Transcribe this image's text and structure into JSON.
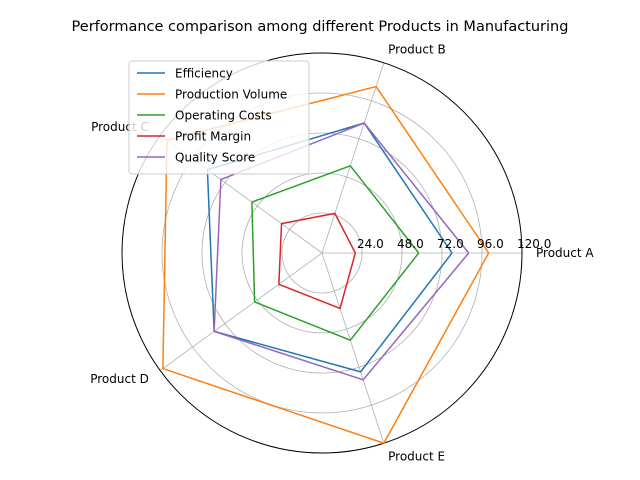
{
  "chart_data": {
    "type": "radar",
    "title": "Performance comparison among different Products in Manufacturing",
    "categories": [
      "Product A",
      "Product B",
      "Product C",
      "Product D",
      "Product E"
    ],
    "rlim": [
      0,
      120
    ],
    "radial_ticks": [
      24,
      48,
      72,
      96,
      120
    ],
    "radial_tick_labels": [
      "24.0",
      "48.0",
      "72.0",
      "96.0",
      "120.0"
    ],
    "grid": true,
    "legend_position": "upper-left",
    "series": [
      {
        "name": "Efficiency",
        "color": "#1f77b4",
        "values": [
          78,
          82,
          85,
          80,
          75
        ]
      },
      {
        "name": "Production Volume",
        "color": "#ff7f0e",
        "values": [
          100,
          105,
          115,
          118,
          120
        ]
      },
      {
        "name": "Operating Costs",
        "color": "#2ca02c",
        "values": [
          58,
          55,
          52,
          50,
          55
        ]
      },
      {
        "name": "Profit Margin",
        "color": "#d62728",
        "values": [
          20,
          25,
          30,
          32,
          35
        ]
      },
      {
        "name": "Quality Score",
        "color": "#9467bd",
        "values": [
          88,
          82,
          75,
          80,
          80
        ]
      }
    ]
  }
}
